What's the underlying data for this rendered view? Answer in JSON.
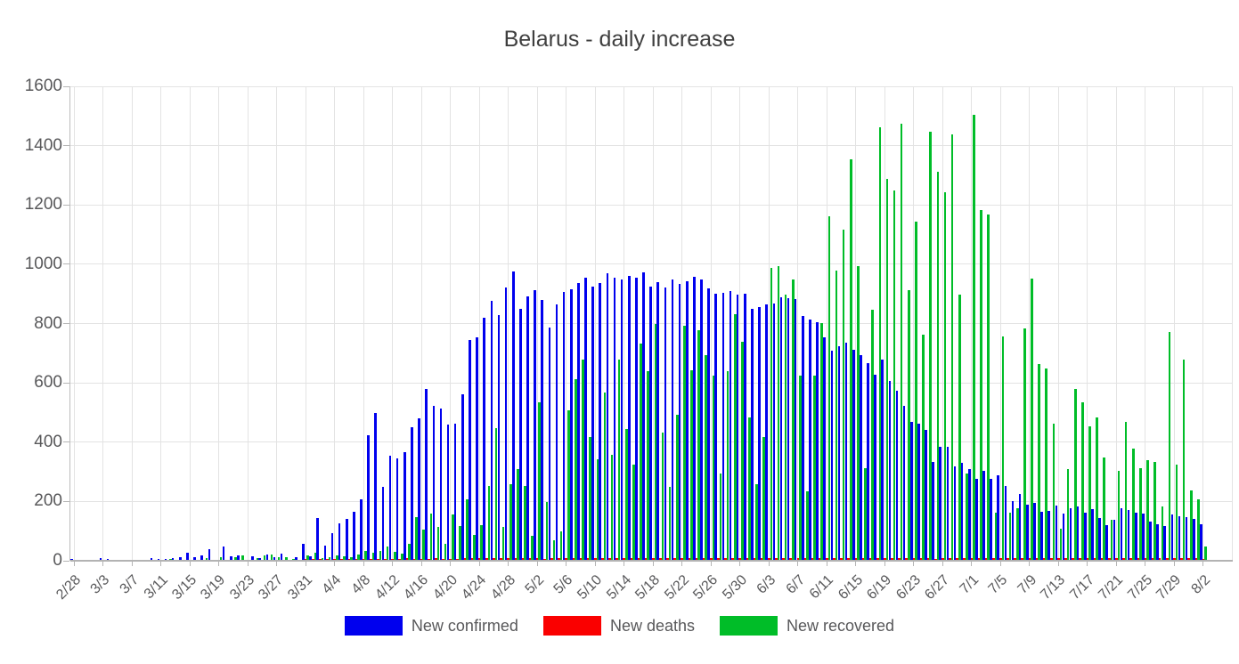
{
  "title": "Belarus - daily increase",
  "y_axis": {
    "min": 0,
    "max": 1600,
    "step": 200,
    "tick_labels": [
      "0",
      "200",
      "400",
      "600",
      "800",
      "1000",
      "1200",
      "1400",
      "1600"
    ]
  },
  "x_axis": {
    "tick_labels": [
      "2/28",
      "3/3",
      "3/7",
      "3/11",
      "3/15",
      "3/19",
      "3/23",
      "3/27",
      "3/31",
      "4/4",
      "4/8",
      "4/12",
      "4/16",
      "4/20",
      "4/24",
      "4/28",
      "5/2",
      "5/6",
      "5/10",
      "5/14",
      "5/18",
      "5/22",
      "5/26",
      "5/30",
      "6/3",
      "6/7",
      "6/11",
      "6/15",
      "6/19",
      "6/23",
      "6/27",
      "7/1",
      "7/5",
      "7/9",
      "7/13",
      "7/17",
      "7/21",
      "7/25",
      "7/29",
      "8/2"
    ]
  },
  "chart_data": {
    "type": "bar",
    "title": "Belarus - daily increase",
    "xlabel": "",
    "ylabel": "",
    "ylim": [
      0,
      1600
    ],
    "grid": true,
    "legend_position": "bottom",
    "x": [
      "2/28",
      "2/29",
      "3/1",
      "3/2",
      "3/3",
      "3/4",
      "3/5",
      "3/6",
      "3/7",
      "3/8",
      "3/9",
      "3/10",
      "3/11",
      "3/12",
      "3/13",
      "3/14",
      "3/15",
      "3/16",
      "3/17",
      "3/18",
      "3/19",
      "3/20",
      "3/21",
      "3/22",
      "3/23",
      "3/24",
      "3/25",
      "3/26",
      "3/27",
      "3/28",
      "3/29",
      "3/30",
      "3/31",
      "4/1",
      "4/2",
      "4/3",
      "4/4",
      "4/5",
      "4/6",
      "4/7",
      "4/8",
      "4/9",
      "4/10",
      "4/11",
      "4/12",
      "4/13",
      "4/14",
      "4/15",
      "4/16",
      "4/17",
      "4/18",
      "4/19",
      "4/20",
      "4/21",
      "4/22",
      "4/23",
      "4/24",
      "4/25",
      "4/26",
      "4/27",
      "4/28",
      "4/29",
      "4/30",
      "5/1",
      "5/2",
      "5/3",
      "5/4",
      "5/5",
      "5/6",
      "5/7",
      "5/8",
      "5/9",
      "5/10",
      "5/11",
      "5/12",
      "5/13",
      "5/14",
      "5/15",
      "5/16",
      "5/17",
      "5/18",
      "5/19",
      "5/20",
      "5/21",
      "5/22",
      "5/23",
      "5/24",
      "5/25",
      "5/26",
      "5/27",
      "5/28",
      "5/29",
      "5/30",
      "5/31",
      "6/1",
      "6/2",
      "6/3",
      "6/4",
      "6/5",
      "6/6",
      "6/7",
      "6/8",
      "6/9",
      "6/10",
      "6/11",
      "6/12",
      "6/13",
      "6/14",
      "6/15",
      "6/16",
      "6/17",
      "6/18",
      "6/19",
      "6/20",
      "6/21",
      "6/22",
      "6/23",
      "6/24",
      "6/25",
      "6/26",
      "6/27",
      "6/28",
      "6/29",
      "6/30",
      "7/1",
      "7/2",
      "7/3",
      "7/4",
      "7/5",
      "7/6",
      "7/7",
      "7/8",
      "7/9",
      "7/10",
      "7/11",
      "7/12",
      "7/13",
      "7/14",
      "7/15",
      "7/16",
      "7/17",
      "7/18",
      "7/19",
      "7/20",
      "7/21",
      "7/22",
      "7/23",
      "7/24",
      "7/25",
      "7/26",
      "7/27",
      "7/28",
      "7/29",
      "7/30",
      "7/31",
      "8/1",
      "8/2"
    ],
    "series": [
      {
        "name": "New confirmed",
        "color": "#0000ee",
        "values": [
          1,
          0,
          0,
          0,
          6,
          1,
          0,
          0,
          0,
          0,
          0,
          5,
          3,
          2,
          7,
          9,
          25,
          9,
          15,
          35,
          0,
          45,
          12,
          15,
          0,
          12,
          5,
          18,
          8,
          22,
          0,
          10,
          55,
          11,
          141,
          47,
          89,
          122,
          138,
          161,
          205,
          420,
          495,
          245,
          352,
          341,
          362,
          447,
          476,
          575,
          518,
          510,
          457,
          459,
          558,
          741,
          751,
          817,
          873,
          826,
          919,
          973,
          846,
          890,
          911,
          877,
          784,
          861,
          905,
          913,
          933,
          951,
          921,
          933,
          967,
          952,
          947,
          958,
          951,
          969,
          922,
          936,
          918,
          945,
          932,
          941,
          954,
          946,
          915,
          897,
          902,
          906,
          894,
          898,
          847,
          852,
          861,
          865,
          887,
          883,
          879,
          823,
          812,
          801,
          750,
          704,
          721,
          732,
          707,
          689,
          663,
          625,
          676,
          603,
          569,
          518,
          464,
          458,
          437,
          331,
          382,
          380,
          315,
          328,
          306,
          274,
          299,
          273,
          284,
          250,
          199,
          221,
          187,
          193,
          163,
          165,
          182,
          155,
          174,
          180,
          159,
          171,
          142,
          118,
          135,
          173,
          167,
          158,
          156,
          130,
          119,
          115,
          152,
          147,
          143,
          138,
          121
        ]
      },
      {
        "name": "New deaths",
        "color": "#fa0000",
        "values": [
          0,
          0,
          0,
          0,
          0,
          0,
          0,
          0,
          0,
          0,
          0,
          0,
          0,
          0,
          0,
          0,
          0,
          0,
          0,
          0,
          0,
          0,
          0,
          0,
          0,
          0,
          0,
          0,
          0,
          0,
          0,
          0,
          1,
          1,
          2,
          2,
          2,
          3,
          2,
          3,
          2,
          3,
          4,
          3,
          2,
          4,
          5,
          3,
          4,
          4,
          5,
          3,
          2,
          4,
          5,
          6,
          5,
          6,
          6,
          5,
          6,
          6,
          5,
          5,
          5,
          4,
          6,
          5,
          5,
          6,
          5,
          5,
          5,
          6,
          6,
          5,
          6,
          5,
          5,
          5,
          6,
          5,
          6,
          5,
          6,
          6,
          5,
          5,
          5,
          6,
          5,
          5,
          5,
          5,
          5,
          5,
          6,
          5,
          5,
          6,
          6,
          5,
          5,
          6,
          6,
          5,
          6,
          5,
          5,
          6,
          6,
          5,
          6,
          5,
          5,
          6,
          6,
          5,
          6,
          4,
          6,
          5,
          5,
          6,
          6,
          6,
          6,
          6,
          6,
          5,
          6,
          5,
          5,
          6,
          5,
          5,
          6,
          5,
          5,
          6,
          5,
          5,
          5,
          5,
          5,
          6,
          5,
          5,
          5,
          5,
          5,
          5,
          5,
          5,
          5,
          5,
          4
        ]
      },
      {
        "name": "New recovered",
        "color": "#00bd28",
        "values": [
          0,
          0,
          0,
          0,
          0,
          0,
          0,
          0,
          0,
          0,
          0,
          0,
          0,
          3,
          0,
          0,
          0,
          0,
          5,
          0,
          8,
          0,
          8,
          15,
          0,
          6,
          15,
          18,
          10,
          8,
          4,
          0,
          15,
          25,
          6,
          10,
          15,
          12,
          10,
          17,
          29,
          25,
          30,
          45,
          26,
          22,
          54,
          145,
          101,
          155,
          112,
          55,
          152,
          113,
          203,
          85,
          118,
          250,
          445,
          112,
          255,
          305,
          250,
          80,
          530,
          195,
          65,
          95,
          505,
          610,
          675,
          415,
          340,
          565,
          355,
          675,
          440,
          320,
          730,
          635,
          795,
          430,
          245,
          490,
          790,
          640,
          775,
          690,
          620,
          290,
          635,
          830,
          735,
          480,
          255,
          415,
          985,
          990,
          895,
          945,
          620,
          230,
          620,
          800,
          1160,
          975,
          1115,
          1350,
          990,
          310,
          845,
          1460,
          1285,
          1245,
          1470,
          910,
          1140,
          760,
          1445,
          1310,
          1240,
          1435,
          895,
          290,
          1500,
          1180,
          1165,
          160,
          755,
          160,
          175,
          780,
          950,
          660,
          645,
          460,
          105,
          305,
          575,
          530,
          450,
          480,
          345,
          135,
          300,
          465,
          375,
          310,
          335,
          330,
          180,
          770,
          320,
          675,
          235,
          205,
          45
        ]
      }
    ]
  }
}
